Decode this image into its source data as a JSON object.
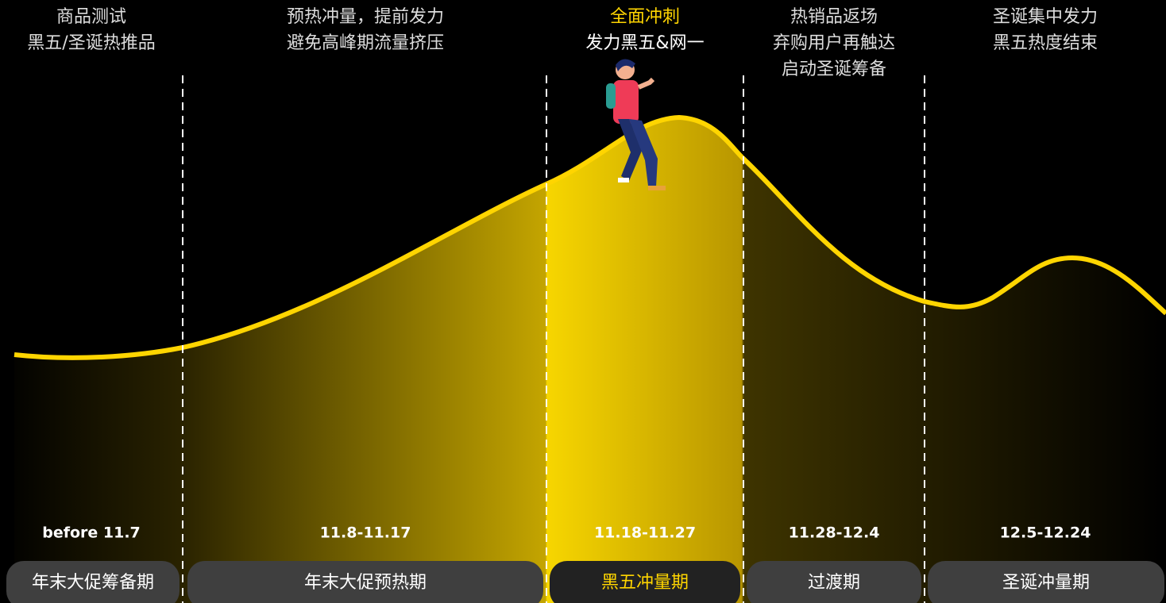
{
  "phases": [
    {
      "notes": [
        "商品测试",
        "黑五/圣诞热推品"
      ],
      "dates": "before 11.7",
      "label": "年末大促筹备期"
    },
    {
      "notes": [
        "预热冲量，提前发力",
        "避免高峰期流量挤压"
      ],
      "dates": "11.8-11.17",
      "label": "年末大促预热期"
    },
    {
      "notes": [
        "全面冲刺",
        "发力黑五&网一"
      ],
      "dates": "11.18-11.27",
      "label": "黑五冲量期"
    },
    {
      "notes": [
        "热销品返场",
        "弃购用户再触达",
        "启动圣诞筹备"
      ],
      "dates": "11.28-12.4",
      "label": "过渡期"
    },
    {
      "notes": [
        "圣诞集中发力",
        "黑五热度结束"
      ],
      "dates": "12.5-12.24",
      "label": "圣诞冲量期"
    }
  ]
}
